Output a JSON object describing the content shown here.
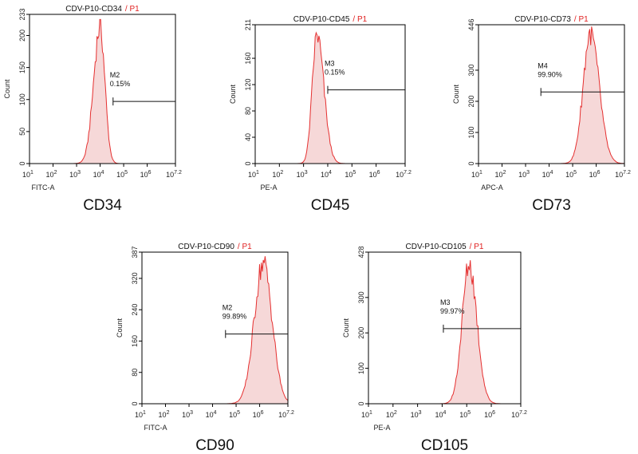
{
  "chart_data": [
    {
      "type": "histogram",
      "title": "CDV-P10-CD34",
      "gate_label": "/ P1",
      "caption": "CD34",
      "xlabel": "FITC-A",
      "ylabel": "Count",
      "x_scale": "log10",
      "xlim_log10": [
        1,
        7.2
      ],
      "x_ticks": [
        {
          "base": "10",
          "exp": "1"
        },
        {
          "base": "10",
          "exp": "2"
        },
        {
          "base": "10",
          "exp": "3"
        },
        {
          "base": "10",
          "exp": "4"
        },
        {
          "base": "10",
          "exp": "5"
        },
        {
          "base": "10",
          "exp": "6"
        },
        {
          "base": "10",
          "exp": "7.2"
        }
      ],
      "ylim": [
        0,
        233
      ],
      "y_ticks": [
        "0",
        "50",
        "100",
        "150",
        "200",
        "233"
      ],
      "peak_log10": 4.0,
      "peak_count": 225,
      "width_log10": 0.24,
      "skew": -0.15,
      "marker": {
        "name": "M2",
        "pct": "0.15%",
        "start_log10": 4.55,
        "end_log10": 7.2,
        "level": 97
      }
    },
    {
      "type": "histogram",
      "title": "CDV-P10-CD45",
      "gate_label": "/ P1",
      "caption": "CD45",
      "xlabel": "PE-A",
      "ylabel": "Count",
      "x_scale": "log10",
      "xlim_log10": [
        1,
        7.2
      ],
      "x_ticks": [
        {
          "base": "10",
          "exp": "1"
        },
        {
          "base": "10",
          "exp": "2"
        },
        {
          "base": "10",
          "exp": "3"
        },
        {
          "base": "10",
          "exp": "4"
        },
        {
          "base": "10",
          "exp": "5"
        },
        {
          "base": "10",
          "exp": "6"
        },
        {
          "base": "10",
          "exp": "7.2"
        }
      ],
      "ylim": [
        0,
        211
      ],
      "y_ticks": [
        "0",
        "40",
        "80",
        "120",
        "160",
        "211"
      ],
      "peak_log10": 3.55,
      "peak_count": 205,
      "width_log10": 0.24,
      "skew": 0.2,
      "marker": {
        "name": "M3",
        "pct": "0.15%",
        "start_log10": 4.0,
        "end_log10": 7.2,
        "level": 112
      }
    },
    {
      "type": "histogram",
      "title": "CDV-P10-CD73",
      "gate_label": "/ P1",
      "caption": "CD73",
      "xlabel": "APC-A",
      "ylabel": "Count",
      "x_scale": "log10",
      "xlim_log10": [
        1,
        7.2
      ],
      "x_ticks": [
        {
          "base": "10",
          "exp": "1"
        },
        {
          "base": "10",
          "exp": "2"
        },
        {
          "base": "10",
          "exp": "3"
        },
        {
          "base": "10",
          "exp": "4"
        },
        {
          "base": "10",
          "exp": "5"
        },
        {
          "base": "10",
          "exp": "6"
        },
        {
          "base": "10",
          "exp": "7.2"
        }
      ],
      "ylim": [
        0,
        446
      ],
      "y_ticks": [
        "0",
        "100",
        "200",
        "300",
        "446"
      ],
      "peak_log10": 5.75,
      "peak_count": 440,
      "width_log10": 0.34,
      "skew": 0.1,
      "marker": {
        "name": "M4",
        "pct": "99.90%",
        "start_log10": 3.65,
        "end_log10": 7.2,
        "level": 230
      }
    },
    {
      "type": "histogram",
      "title": "CDV-P10-CD90",
      "gate_label": "/ P1",
      "caption": "CD90",
      "xlabel": "FITC-A",
      "ylabel": "Count",
      "x_scale": "log10",
      "xlim_log10": [
        1,
        7.2
      ],
      "x_ticks": [
        {
          "base": "10",
          "exp": "1"
        },
        {
          "base": "10",
          "exp": "2"
        },
        {
          "base": "10",
          "exp": "3"
        },
        {
          "base": "10",
          "exp": "4"
        },
        {
          "base": "10",
          "exp": "5"
        },
        {
          "base": "10",
          "exp": "6"
        },
        {
          "base": "10",
          "exp": "7.2"
        }
      ],
      "ylim": [
        0,
        387
      ],
      "y_ticks": [
        "0",
        "80",
        "160",
        "240",
        "320",
        "387"
      ],
      "peak_log10": 6.15,
      "peak_count": 378,
      "width_log10": 0.38,
      "skew": 0.0,
      "marker": {
        "name": "M2",
        "pct": "99.89%",
        "start_log10": 4.55,
        "end_log10": 7.2,
        "level": 178
      }
    },
    {
      "type": "histogram",
      "title": "CDV-P10-CD105",
      "gate_label": "/ P1",
      "caption": "CD105",
      "xlabel": "PE-A",
      "ylabel": "Count",
      "x_scale": "log10",
      "xlim_log10": [
        1,
        7.2
      ],
      "x_ticks": [
        {
          "base": "10",
          "exp": "1"
        },
        {
          "base": "10",
          "exp": "2"
        },
        {
          "base": "10",
          "exp": "3"
        },
        {
          "base": "10",
          "exp": "4"
        },
        {
          "base": "10",
          "exp": "5"
        },
        {
          "base": "10",
          "exp": "6"
        },
        {
          "base": "10",
          "exp": "7.2"
        }
      ],
      "ylim": [
        0,
        428
      ],
      "y_ticks": [
        "0",
        "100",
        "200",
        "300",
        "428"
      ],
      "peak_log10": 5.1,
      "peak_count": 415,
      "width_log10": 0.3,
      "skew": 0.05,
      "marker": {
        "name": "M3",
        "pct": "99.97%",
        "start_log10": 4.05,
        "end_log10": 7.2,
        "level": 212
      }
    }
  ]
}
